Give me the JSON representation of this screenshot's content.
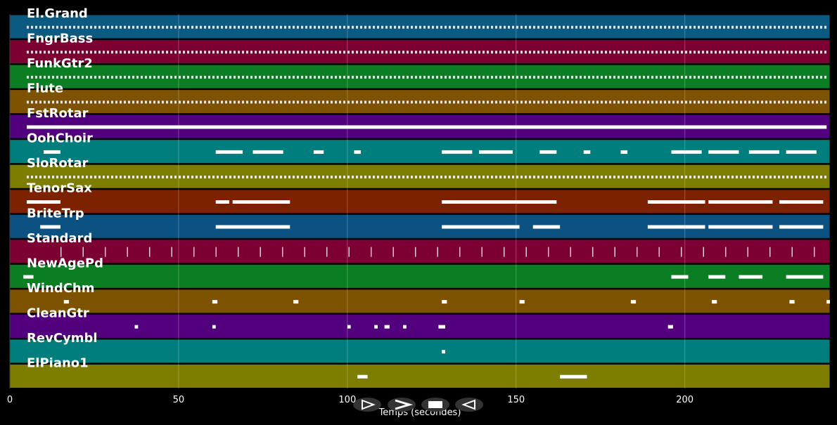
{
  "chart_data": {
    "type": "piano-roll",
    "x_label": "Temps (secondes)",
    "xlim": [
      0,
      243
    ],
    "xticks": [
      0,
      50,
      100,
      150,
      200
    ],
    "grid": true,
    "tracks": [
      {
        "name": "El.Grand",
        "color": "#0b5a82",
        "style": "dashed",
        "notes": [
          [
            5,
            242
          ]
        ]
      },
      {
        "name": "FngrBass",
        "color": "#7d0033",
        "style": "dashed",
        "notes": [
          [
            5,
            242
          ]
        ]
      },
      {
        "name": "FunkGtr2",
        "color": "#0b7d22",
        "style": "dashed",
        "notes": [
          [
            5,
            242
          ]
        ]
      },
      {
        "name": "Flute",
        "color": "#7d5200",
        "style": "dashed",
        "notes": [
          [
            5,
            242
          ]
        ]
      },
      {
        "name": "FstRotar",
        "color": "#52007d",
        "style": "solid",
        "notes": [
          [
            5,
            242
          ]
        ]
      },
      {
        "name": "OohChoir",
        "color": "#007d7d",
        "style": "solid",
        "notes": [
          [
            10,
            15
          ],
          [
            61,
            69
          ],
          [
            72,
            81
          ],
          [
            90,
            93
          ],
          [
            102,
            104
          ],
          [
            128,
            137
          ],
          [
            139,
            149
          ],
          [
            157,
            162
          ],
          [
            170,
            172
          ],
          [
            181,
            183
          ],
          [
            196,
            205
          ],
          [
            207,
            216
          ],
          [
            219,
            228
          ],
          [
            230,
            239
          ]
        ]
      },
      {
        "name": "SloRotar",
        "color": "#7d7d00",
        "style": "dashed",
        "notes": [
          [
            5,
            242
          ]
        ]
      },
      {
        "name": "TenorSax",
        "color": "#7d2200",
        "style": "solid",
        "notes": [
          [
            5,
            15
          ],
          [
            61,
            65
          ],
          [
            66,
            83
          ],
          [
            128,
            162
          ],
          [
            189,
            206
          ],
          [
            207,
            226
          ],
          [
            228,
            241
          ]
        ]
      },
      {
        "name": "BriteTrp",
        "color": "#0b5282",
        "style": "solid",
        "notes": [
          [
            9,
            15
          ],
          [
            61,
            83
          ],
          [
            128,
            151
          ],
          [
            155,
            163
          ],
          [
            189,
            206
          ],
          [
            207,
            226
          ],
          [
            228,
            241
          ]
        ]
      },
      {
        "name": "Standard",
        "color": "#7d0033",
        "style": "sparse",
        "notes": [
          [
            15,
            240
          ]
        ]
      },
      {
        "name": "NewAgePd",
        "color": "#0b7d22",
        "style": "solid",
        "notes": [
          [
            4,
            7
          ],
          [
            196,
            201
          ],
          [
            207,
            212
          ],
          [
            216,
            223
          ],
          [
            230,
            241
          ]
        ]
      },
      {
        "name": "WindChm",
        "color": "#7d5200",
        "style": "solid",
        "notes": [
          [
            16,
            17.5
          ],
          [
            60,
            61.5
          ],
          [
            84,
            85.5
          ],
          [
            128,
            129.5
          ],
          [
            151,
            152.5
          ],
          [
            184,
            185.5
          ],
          [
            208,
            209.5
          ],
          [
            231,
            232.5
          ],
          [
            242,
            243
          ]
        ]
      },
      {
        "name": "CleanGtr",
        "color": "#52007d",
        "style": "solid",
        "notes": [
          [
            37,
            38
          ],
          [
            60,
            61
          ],
          [
            100,
            101
          ],
          [
            108,
            109
          ],
          [
            111,
            112.5
          ],
          [
            116.5,
            117.5
          ],
          [
            127,
            129
          ],
          [
            195,
            196.5
          ]
        ]
      },
      {
        "name": "RevCymbl",
        "color": "#007d7d",
        "style": "solid",
        "notes": [
          [
            128,
            129
          ]
        ]
      },
      {
        "name": "ElPiano1",
        "color": "#7d7d00",
        "style": "solid",
        "notes": [
          [
            103,
            106
          ],
          [
            163,
            171
          ]
        ]
      }
    ]
  }
}
